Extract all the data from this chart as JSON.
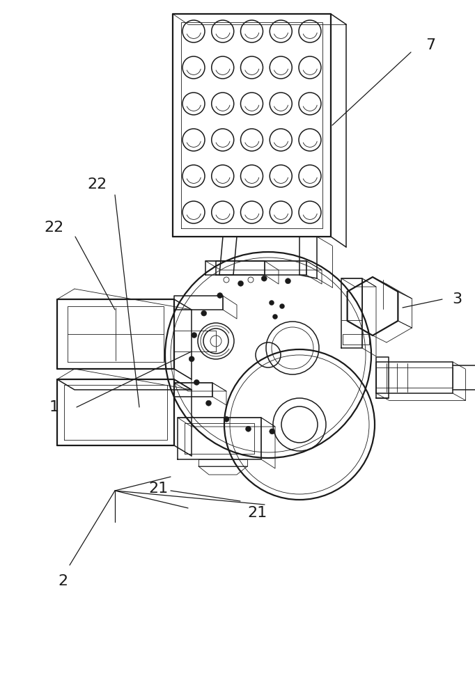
{
  "bg_color": "#ffffff",
  "line_color": "#1a1a1a",
  "lw": 1.1,
  "lw_thin": 0.6,
  "lw_thick": 1.6,
  "lw_ann": 0.9,
  "label_fontsize": 16,
  "fig_w": 6.82,
  "fig_h": 10.0,
  "dpi": 100
}
